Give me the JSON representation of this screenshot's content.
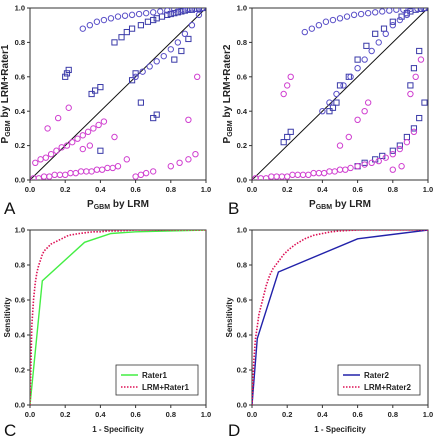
{
  "figure": {
    "panels": [
      "A",
      "B",
      "C",
      "D"
    ]
  },
  "chart_data": [
    {
      "panel": "A",
      "type": "scatter",
      "xlabel_main": "P",
      "xlabel_sub": "GBM",
      "xlabel_rest": " by LRM",
      "ylabel_main": "P",
      "ylabel_sub": "GBM",
      "ylabel_rest": " by LRM+Rater1",
      "xlim": [
        0,
        1
      ],
      "ylim": [
        0,
        1
      ],
      "xticks": [
        "0.0",
        "0.2",
        "0.4",
        "0.6",
        "0.8",
        "1.0"
      ],
      "yticks": [
        "0.0",
        "0.2",
        "0.4",
        "0.6",
        "0.8",
        "1.0"
      ],
      "diagonal": true,
      "series": [
        {
          "marker": "square",
          "color": "#3a3aa8",
          "x": [
            0.2,
            0.21,
            0.22,
            0.35,
            0.37,
            0.4,
            0.48,
            0.52,
            0.55,
            0.58,
            0.63,
            0.67,
            0.7,
            0.72,
            0.75,
            0.78,
            0.8,
            0.82,
            0.84,
            0.86,
            0.88,
            0.9,
            0.92,
            0.94,
            0.96,
            0.98,
            0.7,
            0.72,
            0.82,
            0.86,
            0.9,
            0.58,
            0.6,
            0.4,
            0.63
          ],
          "y": [
            0.6,
            0.62,
            0.64,
            0.5,
            0.52,
            0.54,
            0.8,
            0.83,
            0.86,
            0.88,
            0.9,
            0.92,
            0.93,
            0.94,
            0.95,
            0.96,
            0.965,
            0.97,
            0.975,
            0.98,
            0.985,
            0.99,
            0.99,
            0.995,
            0.995,
            1.0,
            0.36,
            0.38,
            0.7,
            0.75,
            0.82,
            0.58,
            0.62,
            0.17,
            0.45
          ]
        },
        {
          "marker": "circle",
          "color": "#5a50c8",
          "x": [
            0.3,
            0.34,
            0.38,
            0.42,
            0.46,
            0.5,
            0.54,
            0.58,
            0.62,
            0.66,
            0.7,
            0.74,
            0.78,
            0.82,
            0.86,
            0.9,
            0.94,
            0.98,
            0.6,
            0.64,
            0.68,
            0.72,
            0.76,
            0.8,
            0.84,
            0.88,
            0.92,
            0.96
          ],
          "y": [
            0.88,
            0.9,
            0.92,
            0.93,
            0.94,
            0.95,
            0.955,
            0.96,
            0.965,
            0.97,
            0.975,
            0.98,
            0.985,
            0.99,
            0.99,
            0.995,
            0.995,
            1.0,
            0.6,
            0.63,
            0.66,
            0.69,
            0.72,
            0.76,
            0.8,
            0.85,
            0.9,
            0.96
          ]
        },
        {
          "marker": "circle",
          "color": "#d040d0",
          "x": [
            0.02,
            0.05,
            0.08,
            0.11,
            0.14,
            0.17,
            0.2,
            0.23,
            0.26,
            0.29,
            0.32,
            0.35,
            0.38,
            0.41,
            0.44,
            0.47,
            0.5,
            0.03,
            0.06,
            0.09,
            0.12,
            0.15,
            0.18,
            0.21,
            0.24,
            0.27,
            0.3,
            0.33,
            0.36,
            0.39,
            0.42,
            0.6,
            0.63,
            0.66,
            0.7,
            0.8,
            0.85,
            0.9,
            0.94,
            0.1,
            0.16,
            0.22,
            0.48,
            0.55,
            0.9,
            0.95,
            0.3,
            0.34
          ],
          "y": [
            0.01,
            0.01,
            0.02,
            0.02,
            0.03,
            0.03,
            0.03,
            0.04,
            0.04,
            0.05,
            0.05,
            0.05,
            0.06,
            0.06,
            0.07,
            0.07,
            0.08,
            0.1,
            0.12,
            0.13,
            0.15,
            0.17,
            0.19,
            0.2,
            0.22,
            0.24,
            0.26,
            0.28,
            0.3,
            0.32,
            0.34,
            0.02,
            0.03,
            0.04,
            0.05,
            0.08,
            0.1,
            0.12,
            0.15,
            0.3,
            0.36,
            0.42,
            0.25,
            0.12,
            0.35,
            0.6,
            0.18,
            0.2
          ]
        }
      ]
    },
    {
      "panel": "B",
      "type": "scatter",
      "xlabel_main": "P",
      "xlabel_sub": "GBM",
      "xlabel_rest": " by LRM",
      "ylabel_main": "P",
      "ylabel_sub": "GBM",
      "ylabel_rest": " by LRM+Rater2",
      "xlim": [
        0,
        1
      ],
      "ylim": [
        0,
        1
      ],
      "xticks": [
        "0.0",
        "0.2",
        "0.4",
        "0.6",
        "0.8",
        "1.0"
      ],
      "yticks": [
        "0.0",
        "0.2",
        "0.4",
        "0.6",
        "0.8",
        "1.0"
      ],
      "diagonal": true,
      "series": [
        {
          "marker": "square",
          "color": "#3a3aa8",
          "x": [
            0.18,
            0.2,
            0.22,
            0.44,
            0.46,
            0.48,
            0.5,
            0.55,
            0.6,
            0.65,
            0.7,
            0.75,
            0.8,
            0.85,
            0.88,
            0.9,
            0.93,
            0.96,
            0.98,
            0.6,
            0.64,
            0.7,
            0.74,
            0.8,
            0.84,
            0.88,
            0.92,
            0.95,
            0.98,
            0.9,
            0.92,
            0.95
          ],
          "y": [
            0.22,
            0.25,
            0.28,
            0.4,
            0.42,
            0.45,
            0.55,
            0.6,
            0.7,
            0.78,
            0.85,
            0.88,
            0.92,
            0.95,
            0.97,
            0.98,
            0.99,
            0.995,
            1.0,
            0.08,
            0.1,
            0.12,
            0.14,
            0.17,
            0.2,
            0.25,
            0.3,
            0.36,
            0.45,
            0.55,
            0.65,
            0.75
          ]
        },
        {
          "marker": "circle",
          "color": "#5a50c8",
          "x": [
            0.3,
            0.34,
            0.38,
            0.42,
            0.46,
            0.5,
            0.54,
            0.58,
            0.62,
            0.66,
            0.7,
            0.74,
            0.78,
            0.82,
            0.86,
            0.9,
            0.94,
            0.98,
            0.4,
            0.44,
            0.48,
            0.52,
            0.56,
            0.6,
            0.64,
            0.68,
            0.72,
            0.76,
            0.8,
            0.84,
            0.88
          ],
          "y": [
            0.86,
            0.88,
            0.9,
            0.92,
            0.93,
            0.94,
            0.95,
            0.96,
            0.965,
            0.97,
            0.975,
            0.98,
            0.985,
            0.99,
            0.99,
            0.995,
            0.995,
            1.0,
            0.4,
            0.45,
            0.5,
            0.55,
            0.6,
            0.65,
            0.7,
            0.75,
            0.8,
            0.85,
            0.9,
            0.93,
            0.96
          ]
        },
        {
          "marker": "circle",
          "color": "#d040d0",
          "x": [
            0.02,
            0.05,
            0.08,
            0.11,
            0.14,
            0.17,
            0.2,
            0.23,
            0.26,
            0.29,
            0.32,
            0.35,
            0.38,
            0.41,
            0.44,
            0.47,
            0.5,
            0.53,
            0.56,
            0.6,
            0.64,
            0.68,
            0.72,
            0.76,
            0.8,
            0.84,
            0.88,
            0.92,
            0.18,
            0.2,
            0.22,
            0.6,
            0.64,
            0.66,
            0.9,
            0.93,
            0.96,
            0.5,
            0.55,
            0.8,
            0.85
          ],
          "y": [
            0.01,
            0.01,
            0.01,
            0.02,
            0.02,
            0.02,
            0.02,
            0.03,
            0.03,
            0.03,
            0.03,
            0.04,
            0.04,
            0.04,
            0.05,
            0.05,
            0.06,
            0.06,
            0.07,
            0.08,
            0.09,
            0.1,
            0.11,
            0.13,
            0.15,
            0.18,
            0.22,
            0.28,
            0.5,
            0.55,
            0.6,
            0.35,
            0.4,
            0.45,
            0.5,
            0.6,
            0.7,
            0.2,
            0.25,
            0.06,
            0.08
          ]
        }
      ]
    },
    {
      "panel": "C",
      "type": "line",
      "xlabel": "1 - Specificity",
      "ylabel": "Sensitivity",
      "xlim": [
        0,
        1
      ],
      "ylim": [
        0,
        1
      ],
      "xticks": [
        "0.0",
        "0.2",
        "0.4",
        "0.6",
        "0.8",
        "1.0"
      ],
      "yticks": [
        "0.0",
        "0.2",
        "0.4",
        "0.6",
        "0.8",
        "1.0"
      ],
      "legend_position": "bottom-right",
      "series": [
        {
          "name": "Rater1",
          "color": "#44ee44",
          "dash": "solid",
          "x": [
            0.0,
            0.07,
            0.31,
            0.46,
            0.6,
            1.0
          ],
          "y": [
            0.0,
            0.71,
            0.93,
            0.98,
            0.99,
            1.0
          ]
        },
        {
          "name": "LRM+Rater1",
          "color": "#dd1155",
          "dash": "dotted",
          "x": [
            0.0,
            0.01,
            0.02,
            0.03,
            0.04,
            0.05,
            0.06,
            0.07,
            0.08,
            0.1,
            0.12,
            0.14,
            0.16,
            0.18,
            0.2,
            0.22,
            0.25,
            0.28,
            0.32,
            0.36,
            0.4,
            0.45,
            0.5,
            0.6,
            0.7,
            0.8,
            1.0
          ],
          "y": [
            0.0,
            0.45,
            0.6,
            0.7,
            0.76,
            0.8,
            0.83,
            0.86,
            0.88,
            0.9,
            0.92,
            0.93,
            0.94,
            0.95,
            0.96,
            0.97,
            0.975,
            0.98,
            0.985,
            0.99,
            0.99,
            0.995,
            0.995,
            1.0,
            1.0,
            1.0,
            1.0
          ]
        }
      ]
    },
    {
      "panel": "D",
      "type": "line",
      "xlabel": "1 - Specificity",
      "ylabel": "Sensitivity",
      "xlim": [
        0,
        1
      ],
      "ylim": [
        0,
        1
      ],
      "xticks": [
        "0.0",
        "0.2",
        "0.4",
        "0.6",
        "0.8",
        "1.0"
      ],
      "yticks": [
        "0.0",
        "0.2",
        "0.4",
        "0.6",
        "0.8",
        "1.0"
      ],
      "legend_position": "bottom-right",
      "series": [
        {
          "name": "Rater2",
          "color": "#2222aa",
          "dash": "solid",
          "x": [
            0.0,
            0.03,
            0.15,
            0.6,
            1.0
          ],
          "y": [
            0.0,
            0.38,
            0.76,
            0.95,
            1.0
          ]
        },
        {
          "name": "LRM+Rater2",
          "color": "#dd1155",
          "dash": "dotted",
          "x": [
            0.0,
            0.01,
            0.02,
            0.03,
            0.04,
            0.06,
            0.08,
            0.1,
            0.12,
            0.15,
            0.18,
            0.21,
            0.25,
            0.3,
            0.35,
            0.4,
            0.45,
            0.5,
            0.6,
            0.7,
            0.8,
            1.0
          ],
          "y": [
            0.0,
            0.25,
            0.38,
            0.45,
            0.52,
            0.6,
            0.68,
            0.74,
            0.78,
            0.82,
            0.86,
            0.89,
            0.92,
            0.95,
            0.97,
            0.98,
            0.99,
            0.995,
            1.0,
            1.0,
            1.0,
            1.0
          ]
        }
      ]
    }
  ]
}
